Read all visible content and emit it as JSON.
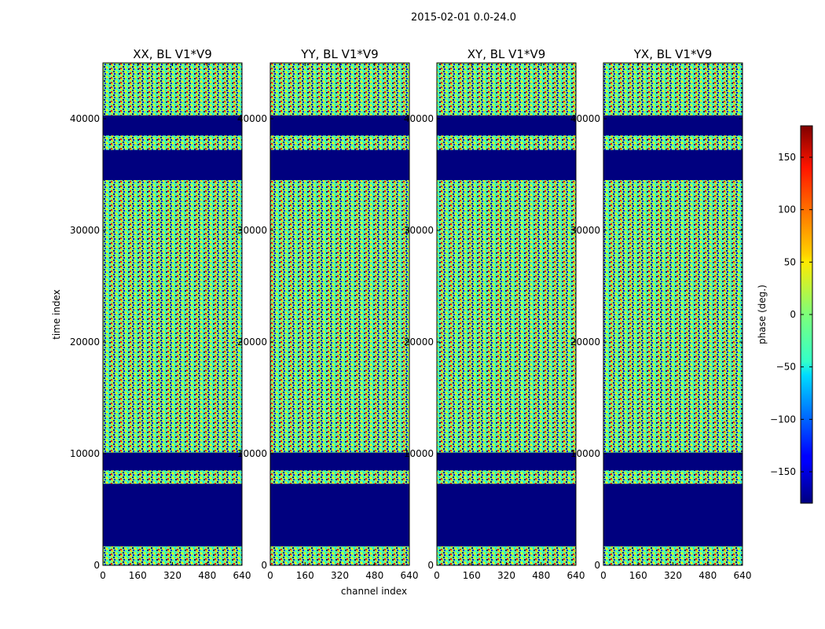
{
  "chart_data": {
    "type": "heatmap",
    "title": "2015-02-01 0.0-24.0",
    "xlabel": "channel index",
    "ylabel": "time index",
    "xlim": [
      0,
      640
    ],
    "ylim": [
      0,
      45000
    ],
    "xticks": [
      0,
      160,
      320,
      480,
      640
    ],
    "yticks": [
      0,
      10000,
      20000,
      30000,
      40000
    ],
    "panels": [
      {
        "title": "XX, BL V1*V9"
      },
      {
        "title": "YY, BL V1*V9"
      },
      {
        "title": "XY, BL V1*V9"
      },
      {
        "title": "YX, BL V1*V9"
      }
    ],
    "colorbar": {
      "label": "phase (deg.)",
      "range": [
        -180,
        180
      ],
      "ticks": [
        -150,
        -100,
        -50,
        0,
        50,
        100,
        150
      ],
      "tick_labels": [
        "−150",
        "−100",
        "−50",
        "0",
        "50",
        "100",
        "150"
      ],
      "colormap": "jet"
    },
    "masked_time_bands": [
      [
        1700,
        7300
      ],
      [
        8500,
        10100
      ],
      [
        34500,
        37200
      ],
      [
        38500,
        40300
      ]
    ]
  },
  "colors": {
    "masked": "#00007f",
    "background": "#ffffff",
    "axes": "#000000"
  }
}
